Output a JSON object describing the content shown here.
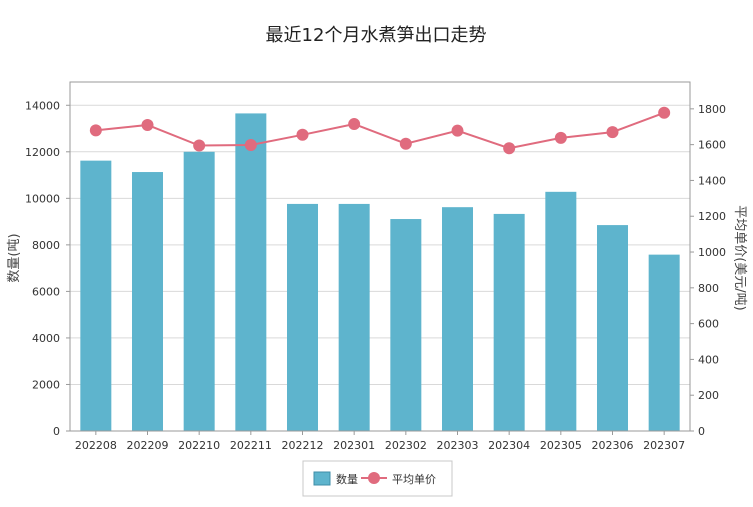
{
  "chart_data": {
    "type": "bar",
    "title": "最近12个月水煮笋出口走势",
    "categories": [
      "202208",
      "202209",
      "202210",
      "202211",
      "202212",
      "202301",
      "202302",
      "202303",
      "202304",
      "202305",
      "202306",
      "202307"
    ],
    "series": [
      {
        "name": "数量",
        "type": "bar",
        "axis": "left",
        "color": "#5eb4cd",
        "values": [
          11620,
          11130,
          12000,
          13650,
          9760,
          9760,
          9110,
          9620,
          9330,
          10280,
          8850,
          7580
        ]
      },
      {
        "name": "平均单价",
        "type": "line",
        "axis": "right",
        "color": "#e06b7e",
        "values": [
          1680,
          1710,
          1595,
          1598,
          1655,
          1715,
          1605,
          1678,
          1580,
          1638,
          1670,
          1778
        ]
      }
    ],
    "y_left": {
      "label": "数量(吨)",
      "min": 0,
      "max": 15000,
      "ticks": [
        0,
        2000,
        4000,
        6000,
        8000,
        10000,
        12000,
        14000
      ]
    },
    "y_right": {
      "label": "平均单价(美元/吨)",
      "min": 0,
      "max": 1950,
      "ticks": [
        0,
        200,
        400,
        600,
        800,
        1000,
        1200,
        1400,
        1600,
        1800
      ]
    },
    "grid": true,
    "legend_position": "bottom"
  }
}
